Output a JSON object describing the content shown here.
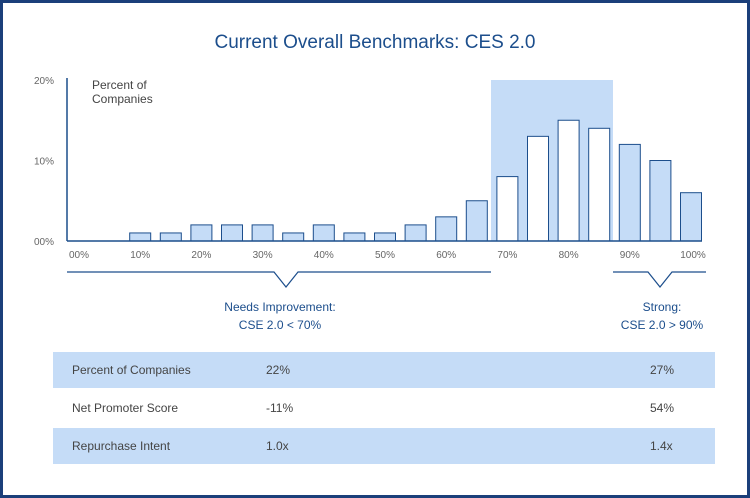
{
  "title": "Current Overall Benchmarks: CES 2.0",
  "chart_data": {
    "type": "bar",
    "title": "Current Overall Benchmarks: CES 2.0",
    "ylabel": "Percent of Companies",
    "ylim": [
      0,
      20
    ],
    "y_ticks": [
      "20%",
      "10%",
      "00%"
    ],
    "y_tick_values": [
      20,
      10,
      0
    ],
    "x_ticks": [
      "00%",
      "10%",
      "20%",
      "30%",
      "40%",
      "50%",
      "60%",
      "70%",
      "80%",
      "90%",
      "100%"
    ],
    "grid": false,
    "highlight_range": [
      "70%",
      "90%"
    ],
    "values": [
      0,
      0,
      1,
      1,
      2,
      2,
      2,
      1,
      2,
      1,
      1,
      2,
      3,
      5,
      8,
      13,
      15,
      14,
      12,
      10,
      6
    ],
    "bar_groups": [
      "low",
      "low",
      "low",
      "low",
      "low",
      "low",
      "low",
      "low",
      "low",
      "low",
      "low",
      "low",
      "low",
      "low",
      "mid",
      "mid",
      "mid",
      "mid",
      "high",
      "high",
      "high"
    ],
    "colors": {
      "low_fill": "#c5dcf7",
      "mid_fill": "#ffffff",
      "high_fill": "#c5dcf7",
      "bar_stroke": "#1c4e8c",
      "band": "#c5dcf7",
      "axis": "#1c4e8c",
      "title": "#1c4e8c"
    }
  },
  "annotations": {
    "needs_improvement": {
      "line1": "Needs Improvement:",
      "line2": "CSE 2.0 < 70%"
    },
    "strong": {
      "line1": "Strong:",
      "line2": "CSE 2.0 > 90%"
    }
  },
  "table": {
    "rows": [
      {
        "label": "Percent of Companies",
        "low": "22%",
        "high": "27%",
        "shaded": true
      },
      {
        "label": "Net Promoter Score",
        "low": "-11%",
        "high": "54%",
        "shaded": false
      },
      {
        "label": "Repurchase Intent",
        "low": "1.0x",
        "high": "1.4x",
        "shaded": true
      }
    ]
  }
}
